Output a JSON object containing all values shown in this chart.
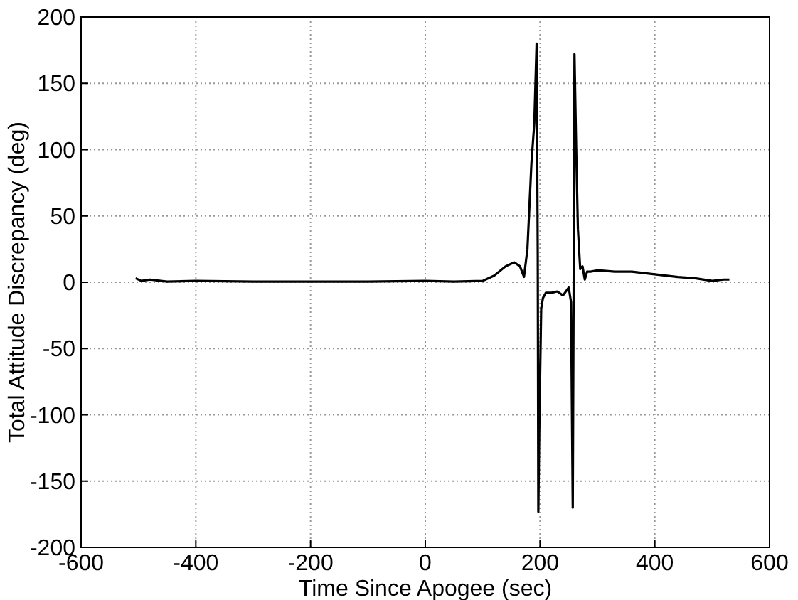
{
  "chart_data": {
    "type": "line",
    "xlabel": "Time Since Apogee (sec)",
    "ylabel": "Total Attitude Discrepancy (deg)",
    "xlim": [
      -600,
      600
    ],
    "ylim": [
      -200,
      200
    ],
    "xticks": [
      -600,
      -400,
      -200,
      0,
      200,
      400,
      600
    ],
    "yticks": [
      -200,
      -150,
      -100,
      -50,
      0,
      50,
      100,
      150,
      200
    ],
    "grid": true,
    "line_style": "solid",
    "marker": "none",
    "series": [
      {
        "color": "#000000",
        "x": [
          -505,
          -495,
          -480,
          -450,
          -400,
          -300,
          -200,
          -100,
          0,
          50,
          100,
          120,
          140,
          155,
          165,
          172,
          178,
          185,
          190,
          194,
          196,
          197,
          199,
          202,
          205,
          210,
          220,
          230,
          240,
          250,
          254,
          257,
          258,
          260,
          263,
          266,
          270,
          274,
          278,
          282,
          288,
          300,
          330,
          360,
          400,
          440,
          470,
          500,
          520,
          530
        ],
        "values": [
          3,
          1,
          2,
          0.5,
          1,
          0.5,
          0.5,
          0.5,
          1,
          0.5,
          1,
          5,
          12,
          15,
          12,
          4,
          25,
          90,
          120,
          180,
          20,
          -173,
          -100,
          -20,
          -12,
          -8,
          -8,
          -7,
          -10,
          -4,
          -15,
          -170,
          -60,
          172,
          100,
          40,
          10,
          12,
          2,
          8,
          8,
          9,
          8,
          8,
          6,
          4,
          3,
          1,
          2,
          2
        ]
      }
    ]
  }
}
